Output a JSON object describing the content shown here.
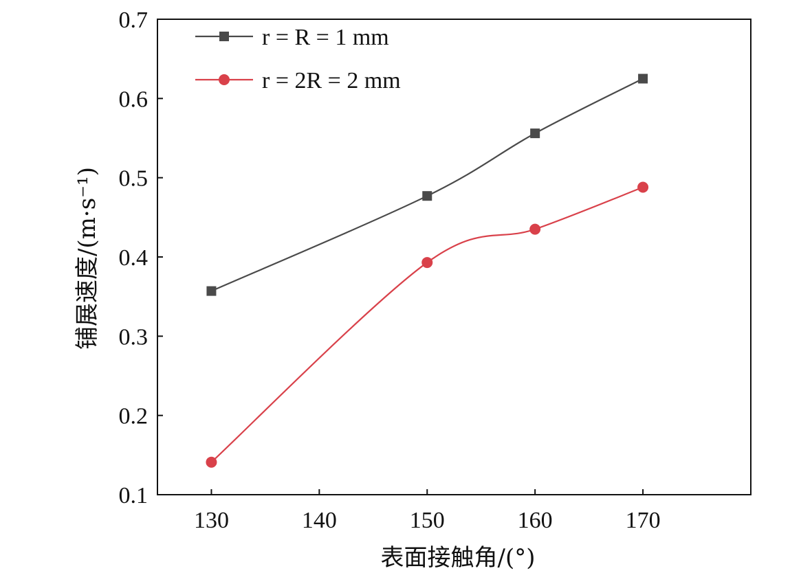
{
  "chart_data": {
    "type": "line",
    "xlabel": "表面接触角/(°)",
    "ylabel": "铺展速度/(m·s⁻¹)",
    "xlim": [
      125,
      180
    ],
    "ylim": [
      0.1,
      0.7
    ],
    "xticks": [
      130,
      140,
      150,
      160,
      170
    ],
    "yticks": [
      0.1,
      0.2,
      0.3,
      0.4,
      0.5,
      0.6,
      0.7
    ],
    "xtick_labels": [
      "130",
      "140",
      "150",
      "160",
      "170"
    ],
    "ytick_labels": [
      "0.1",
      "0.2",
      "0.3",
      "0.4",
      "0.5",
      "0.6",
      "0.7"
    ],
    "x": [
      130,
      150,
      160,
      170
    ],
    "series": [
      {
        "name": "r = R = 1 mm",
        "values": [
          0.357,
          0.477,
          0.556,
          0.625
        ],
        "color": "#4a4a4a",
        "marker": "square"
      },
      {
        "name": "r = 2R = 2 mm",
        "values": [
          0.141,
          0.393,
          0.435,
          0.488
        ],
        "color": "#d9414a",
        "marker": "circle"
      }
    ],
    "legend_position": "top-left",
    "grid": false
  }
}
